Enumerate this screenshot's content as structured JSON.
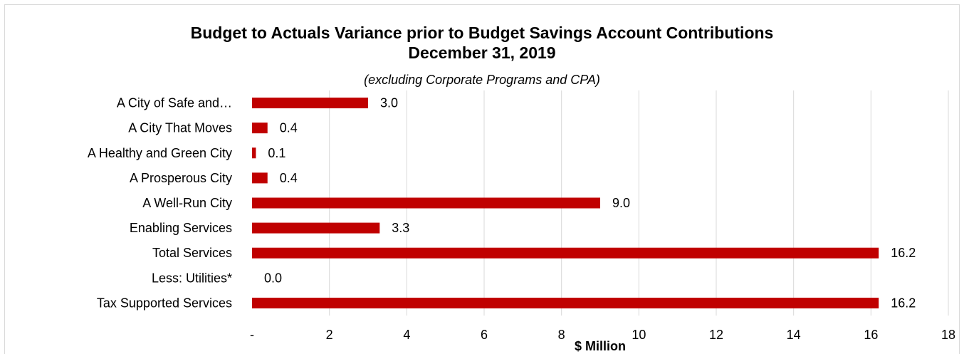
{
  "chart_data": {
    "type": "bar",
    "orientation": "horizontal",
    "title": "Budget to Actuals Variance prior to Budget Savings Account Contributions",
    "title_line2": "December 31, 2019",
    "subtitle": "(excluding Corporate Programs and CPA)",
    "xlabel": "$ Million",
    "ylabel": "",
    "xlim": [
      0,
      18
    ],
    "xticks": [
      "-",
      "2",
      "4",
      "6",
      "8",
      "10",
      "12",
      "14",
      "16",
      "18"
    ],
    "categories": [
      "A City of Safe and…",
      "A City That Moves",
      "A Healthy and Green City",
      "A Prosperous City",
      "A Well-Run City",
      "Enabling Services",
      "Total Services",
      "Less: Utilities*",
      "Tax Supported Services"
    ],
    "values": [
      3.0,
      0.4,
      0.1,
      0.4,
      9.0,
      3.3,
      16.2,
      0.0,
      16.2
    ],
    "data_labels": [
      "3.0",
      "0.4",
      "0.1",
      "0.4",
      "9.0",
      "3.3",
      "16.2",
      "0.0",
      "16.2"
    ],
    "bar_color": "#c00000",
    "gridlines": "vertical",
    "legend": "none"
  }
}
